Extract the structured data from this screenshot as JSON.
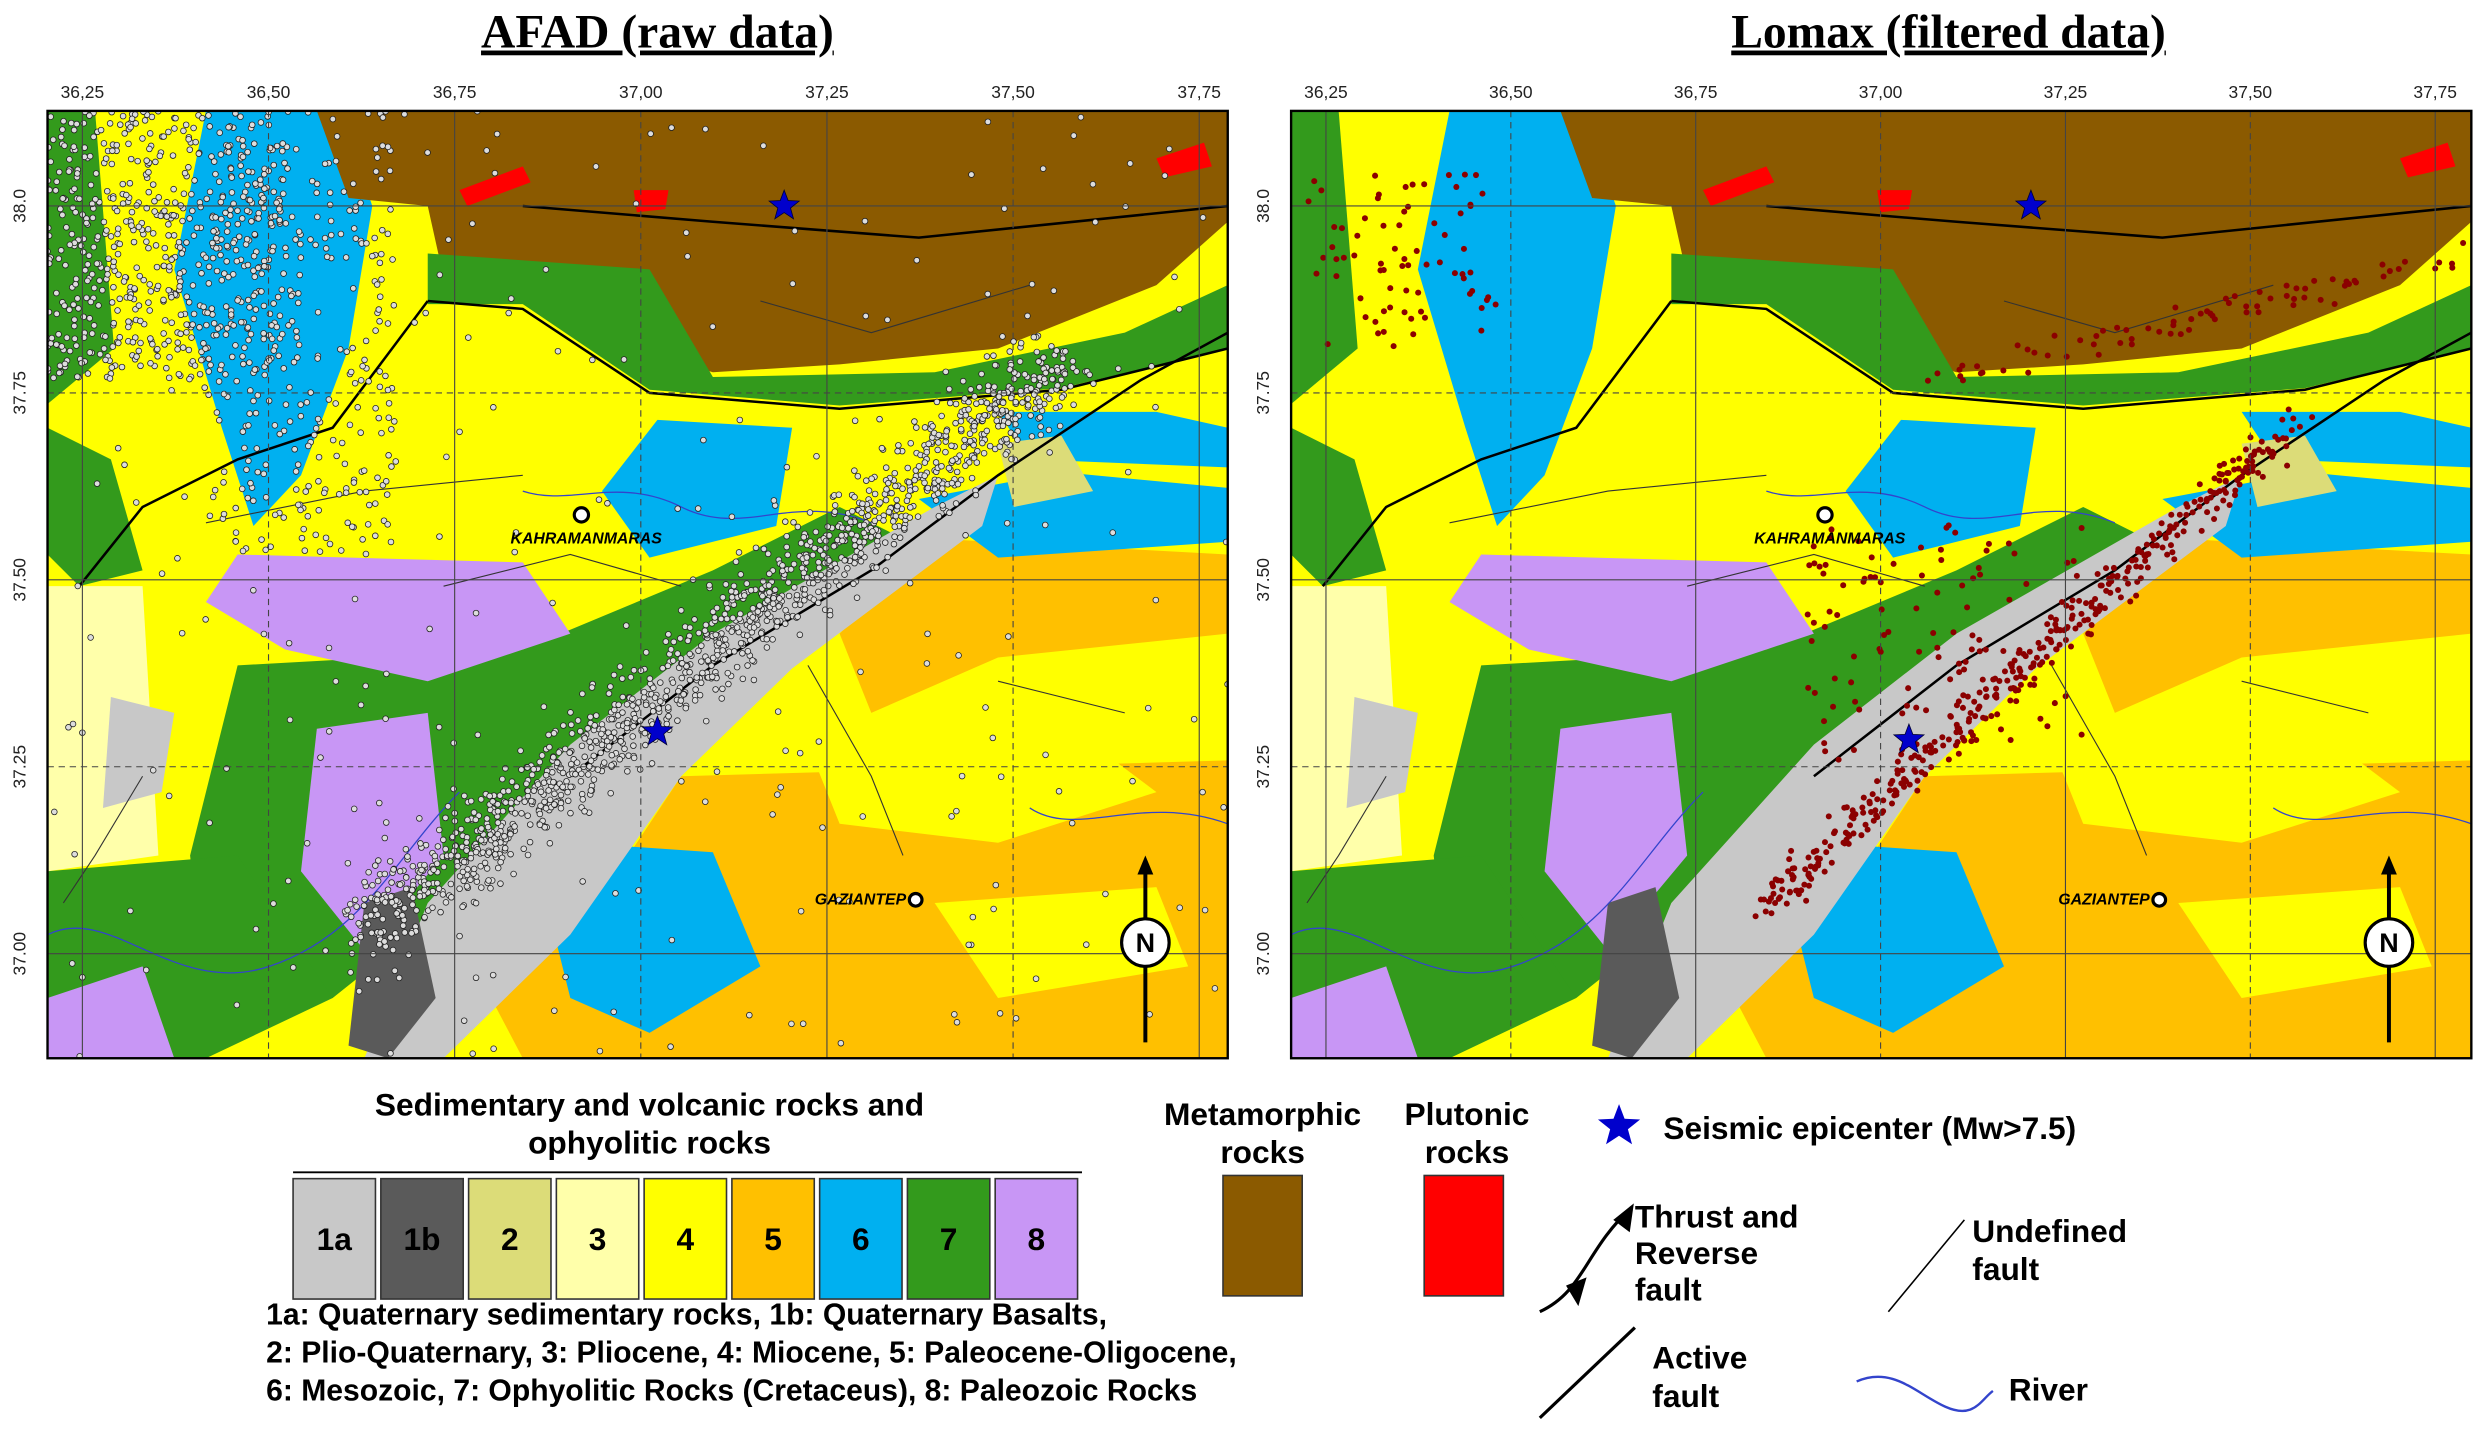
{
  "panels": [
    {
      "title": "AFAD (raw data)"
    },
    {
      "title": "Lomax (filtered data)"
    }
  ],
  "x_ticks": [
    "36,25",
    "36,50",
    "36,75",
    "37,00",
    "37,25",
    "37,50",
    "37,75"
  ],
  "y_ticks": [
    "38.0",
    "37.75",
    "37.50",
    "37.25",
    "37.00"
  ],
  "cities": [
    "KAHRAMANMARAS",
    "GAZIANTEP"
  ],
  "north": "N",
  "legend": {
    "sedimentary_title": [
      "Sedimentary and volcanic rocks and",
      "ophyolitic rocks"
    ],
    "units": [
      {
        "label": "1a",
        "color": "#c8c8c8"
      },
      {
        "label": "1b",
        "color": "#5a5a5a"
      },
      {
        "label": "2",
        "color": "#dcdc78"
      },
      {
        "label": "3",
        "color": "#ffffaa"
      },
      {
        "label": "4",
        "color": "#ffff00"
      },
      {
        "label": "5",
        "color": "#ffc000"
      },
      {
        "label": "6",
        "color": "#00b0f0"
      },
      {
        "label": "7",
        "color": "#339a1c"
      },
      {
        "label": "8",
        "color": "#c896f5"
      }
    ],
    "metamorphic": [
      "Metamorphic",
      "rocks"
    ],
    "plutonic": [
      "Plutonic",
      "rocks"
    ],
    "description": [
      "1a: Quaternary sedimentary rocks, 1b: Quaternary Basalts,",
      "2: Plio-Quaternary, 3: Pliocene, 4: Miocene, 5: Paleocene-Oligocene,",
      "6: Mesozoic, 7: Ophyolitic Rocks (Cretaceus), 8: Paleozoic Rocks"
    ],
    "epicenter": "Seismic epicenter (Mw>7.5)",
    "thrust": [
      "Thrust and",
      "Reverse",
      "fault"
    ],
    "undefined": [
      "Undefined",
      "fault"
    ],
    "active": [
      "Active",
      "fault"
    ],
    "river": "River"
  }
}
